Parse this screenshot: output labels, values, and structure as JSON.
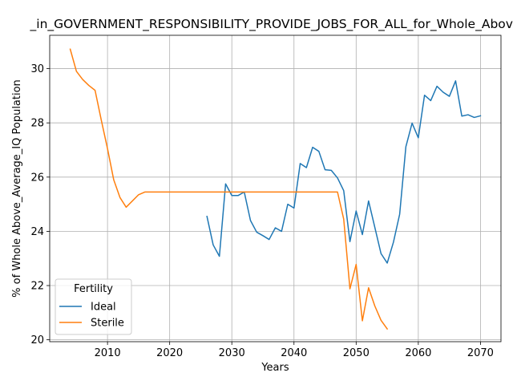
{
  "chart_data": {
    "type": "line",
    "title": "_in_GOVERNMENT_RESPONSIBILITY_PROVIDE_JOBS_FOR_ALL_for_Whole_Above",
    "xlabel": "Years",
    "ylabel": "% of Whole Above_Average_IQ Population",
    "xlim": [
      2000.7,
      2073.3
    ],
    "ylim": [
      19.93,
      31.23
    ],
    "xticks": [
      2010,
      2020,
      2030,
      2040,
      2050,
      2060,
      2070
    ],
    "yticks": [
      20,
      22,
      24,
      26,
      28,
      30
    ],
    "grid": true,
    "legend": {
      "title": "Fertility",
      "placement": "lower-left"
    },
    "series": [
      {
        "name": "Ideal",
        "color": "#1f77b4",
        "x": [
          2026,
          2027,
          2028,
          2029,
          2030,
          2031,
          2032,
          2033,
          2034,
          2035,
          2036,
          2037,
          2038,
          2039,
          2040,
          2041,
          2042,
          2043,
          2044,
          2045,
          2046,
          2047,
          2048,
          2049,
          2050,
          2051,
          2052,
          2053,
          2054,
          2055,
          2056,
          2057,
          2058,
          2059,
          2060,
          2061,
          2062,
          2063,
          2064,
          2065,
          2066,
          2067,
          2068,
          2069,
          2070
        ],
        "y": [
          24.55,
          23.5,
          23.08,
          25.75,
          25.32,
          25.32,
          25.45,
          24.4,
          23.97,
          23.84,
          23.7,
          24.13,
          24.0,
          25.0,
          24.86,
          26.5,
          26.35,
          27.1,
          26.95,
          26.27,
          26.25,
          25.97,
          25.5,
          23.62,
          24.75,
          23.88,
          25.12,
          24.15,
          23.18,
          22.83,
          23.6,
          24.63,
          27.12,
          27.99,
          27.45,
          29.02,
          28.82,
          29.35,
          29.13,
          28.98,
          29.55,
          28.25,
          28.3,
          28.2,
          28.26
        ]
      },
      {
        "name": "Sterile",
        "color": "#ff7f0e",
        "x": [
          2004,
          2005,
          2006,
          2007,
          2008,
          2009,
          2010,
          2011,
          2012,
          2013,
          2014,
          2015,
          2016,
          2017,
          2018,
          2019,
          2020,
          2021,
          2022,
          2023,
          2024,
          2025,
          2026,
          2027,
          2028,
          2029,
          2030,
          2031,
          2032,
          2033,
          2034,
          2035,
          2036,
          2037,
          2038,
          2039,
          2040,
          2041,
          2042,
          2043,
          2044,
          2045,
          2046,
          2047,
          2048,
          2049,
          2050,
          2051,
          2052,
          2053,
          2054,
          2055
        ],
        "y": [
          30.72,
          29.9,
          29.6,
          29.38,
          29.2,
          28.1,
          27.05,
          25.9,
          25.25,
          24.89,
          25.12,
          25.35,
          25.45,
          25.45,
          25.45,
          25.45,
          25.45,
          25.45,
          25.45,
          25.45,
          25.45,
          25.45,
          25.45,
          25.45,
          25.45,
          25.45,
          25.45,
          25.45,
          25.45,
          25.45,
          25.45,
          25.45,
          25.45,
          25.45,
          25.45,
          25.45,
          25.45,
          25.45,
          25.45,
          25.45,
          25.45,
          25.45,
          25.45,
          25.45,
          24.45,
          21.88,
          22.78,
          20.7,
          21.92,
          21.25,
          20.72,
          20.4
        ]
      }
    ]
  }
}
